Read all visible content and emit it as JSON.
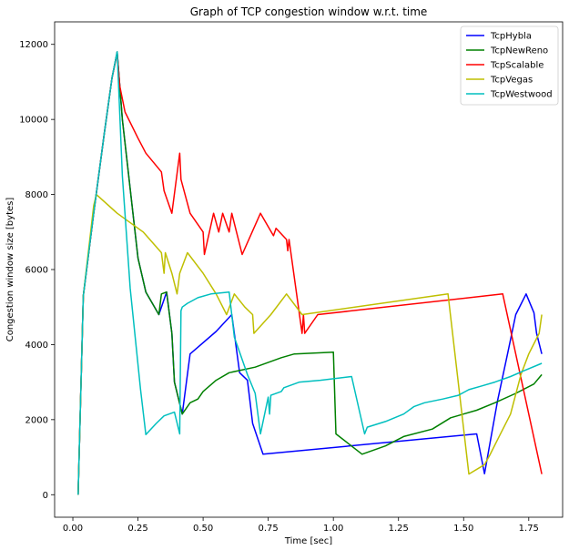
{
  "chart_data": {
    "type": "line",
    "title": "Graph of TCP congestion window w.r.t. time",
    "xlabel": "Time [sec]",
    "ylabel": "Congestion window size [bytes]",
    "xlim": [
      -0.07,
      1.88
    ],
    "ylim": [
      -600,
      12600
    ],
    "xticks": [
      0.0,
      0.25,
      0.5,
      0.75,
      1.0,
      1.25,
      1.5,
      1.75
    ],
    "xtick_labels": [
      "0.00",
      "0.25",
      "0.50",
      "0.75",
      "1.00",
      "1.25",
      "1.50",
      "1.75"
    ],
    "yticks": [
      0,
      2000,
      4000,
      6000,
      8000,
      10000,
      12000
    ],
    "ytick_labels": [
      "0",
      "2000",
      "4000",
      "6000",
      "8000",
      "10000",
      "12000"
    ],
    "grid": false,
    "legend_position": "top-right",
    "series": [
      {
        "name": "TcpHybla",
        "color": "#0000ff",
        "points": [
          [
            0.02,
            0
          ],
          [
            0.04,
            5300
          ],
          [
            0.08,
            7500
          ],
          [
            0.12,
            9600
          ],
          [
            0.15,
            11100
          ],
          [
            0.17,
            11800
          ],
          [
            0.19,
            10000
          ],
          [
            0.25,
            6300
          ],
          [
            0.28,
            5400
          ],
          [
            0.33,
            4800
          ],
          [
            0.36,
            5400
          ],
          [
            0.38,
            4300
          ],
          [
            0.39,
            3000
          ],
          [
            0.42,
            2150
          ],
          [
            0.45,
            3750
          ],
          [
            0.55,
            4350
          ],
          [
            0.61,
            4800
          ],
          [
            0.64,
            3250
          ],
          [
            0.67,
            3050
          ],
          [
            0.69,
            1900
          ],
          [
            0.73,
            1080
          ],
          [
            1.55,
            1620
          ],
          [
            1.58,
            560
          ],
          [
            1.63,
            2500
          ],
          [
            1.67,
            3800
          ],
          [
            1.7,
            4800
          ],
          [
            1.74,
            5350
          ],
          [
            1.77,
            4850
          ],
          [
            1.78,
            4300
          ],
          [
            1.8,
            3750
          ]
        ]
      },
      {
        "name": "TcpNewReno",
        "color": "#008000",
        "points": [
          [
            0.02,
            0
          ],
          [
            0.04,
            5300
          ],
          [
            0.08,
            7500
          ],
          [
            0.12,
            9600
          ],
          [
            0.15,
            11100
          ],
          [
            0.17,
            11800
          ],
          [
            0.19,
            10000
          ],
          [
            0.25,
            6300
          ],
          [
            0.28,
            5400
          ],
          [
            0.33,
            4800
          ],
          [
            0.34,
            5350
          ],
          [
            0.36,
            5400
          ],
          [
            0.38,
            4300
          ],
          [
            0.39,
            3000
          ],
          [
            0.42,
            2150
          ],
          [
            0.45,
            2450
          ],
          [
            0.48,
            2550
          ],
          [
            0.5,
            2750
          ],
          [
            0.55,
            3050
          ],
          [
            0.6,
            3250
          ],
          [
            0.7,
            3400
          ],
          [
            0.8,
            3650
          ],
          [
            0.85,
            3750
          ],
          [
            1.0,
            3800
          ],
          [
            1.01,
            1620
          ],
          [
            1.11,
            1080
          ],
          [
            1.2,
            1300
          ],
          [
            1.27,
            1550
          ],
          [
            1.38,
            1750
          ],
          [
            1.45,
            2050
          ],
          [
            1.55,
            2250
          ],
          [
            1.62,
            2450
          ],
          [
            1.7,
            2700
          ],
          [
            1.77,
            2950
          ],
          [
            1.8,
            3200
          ]
        ]
      },
      {
        "name": "TcpScalable",
        "color": "#ff0000",
        "points": [
          [
            0.02,
            0
          ],
          [
            0.04,
            5300
          ],
          [
            0.08,
            7500
          ],
          [
            0.12,
            9600
          ],
          [
            0.15,
            11100
          ],
          [
            0.17,
            11750
          ],
          [
            0.18,
            10900
          ],
          [
            0.2,
            10200
          ],
          [
            0.25,
            9500
          ],
          [
            0.28,
            9100
          ],
          [
            0.34,
            8600
          ],
          [
            0.35,
            8100
          ],
          [
            0.38,
            7500
          ],
          [
            0.41,
            9100
          ],
          [
            0.415,
            8400
          ],
          [
            0.45,
            7500
          ],
          [
            0.5,
            7000
          ],
          [
            0.505,
            6400
          ],
          [
            0.54,
            7500
          ],
          [
            0.56,
            7000
          ],
          [
            0.575,
            7500
          ],
          [
            0.6,
            7000
          ],
          [
            0.61,
            7500
          ],
          [
            0.65,
            6400
          ],
          [
            0.72,
            7500
          ],
          [
            0.77,
            6900
          ],
          [
            0.78,
            7100
          ],
          [
            0.82,
            6800
          ],
          [
            0.825,
            6500
          ],
          [
            0.83,
            6800
          ],
          [
            0.88,
            4300
          ],
          [
            0.885,
            4800
          ],
          [
            0.89,
            4300
          ],
          [
            0.94,
            4800
          ],
          [
            1.65,
            5350
          ],
          [
            1.8,
            550
          ]
        ]
      },
      {
        "name": "TcpVegas",
        "color": "#bfbf00",
        "points": [
          [
            0.02,
            0
          ],
          [
            0.04,
            5300
          ],
          [
            0.08,
            7700
          ],
          [
            0.09,
            8000
          ],
          [
            0.17,
            7500
          ],
          [
            0.27,
            7000
          ],
          [
            0.34,
            6450
          ],
          [
            0.35,
            5900
          ],
          [
            0.355,
            6450
          ],
          [
            0.38,
            5900
          ],
          [
            0.4,
            5350
          ],
          [
            0.41,
            5900
          ],
          [
            0.44,
            6450
          ],
          [
            0.5,
            5900
          ],
          [
            0.55,
            5350
          ],
          [
            0.59,
            4800
          ],
          [
            0.62,
            5350
          ],
          [
            0.66,
            5000
          ],
          [
            0.69,
            4800
          ],
          [
            0.695,
            4300
          ],
          [
            0.76,
            4800
          ],
          [
            0.82,
            5350
          ],
          [
            0.88,
            4800
          ],
          [
            1.44,
            5350
          ],
          [
            1.52,
            550
          ],
          [
            1.58,
            800
          ],
          [
            1.6,
            1050
          ],
          [
            1.64,
            1600
          ],
          [
            1.68,
            2150
          ],
          [
            1.72,
            3200
          ],
          [
            1.75,
            3750
          ],
          [
            1.79,
            4300
          ],
          [
            1.8,
            4800
          ]
        ]
      },
      {
        "name": "TcpWestwood",
        "color": "#00bfbf",
        "points": [
          [
            0.02,
            0
          ],
          [
            0.04,
            5300
          ],
          [
            0.08,
            7500
          ],
          [
            0.12,
            9600
          ],
          [
            0.15,
            11100
          ],
          [
            0.17,
            11800
          ],
          [
            0.19,
            8500
          ],
          [
            0.22,
            5500
          ],
          [
            0.26,
            2800
          ],
          [
            0.28,
            1600
          ],
          [
            0.32,
            1900
          ],
          [
            0.35,
            2100
          ],
          [
            0.39,
            2200
          ],
          [
            0.41,
            1620
          ],
          [
            0.415,
            4900
          ],
          [
            0.42,
            5000
          ],
          [
            0.44,
            5100
          ],
          [
            0.48,
            5250
          ],
          [
            0.53,
            5350
          ],
          [
            0.6,
            5400
          ],
          [
            0.62,
            4200
          ],
          [
            0.67,
            3200
          ],
          [
            0.7,
            2700
          ],
          [
            0.72,
            1620
          ],
          [
            0.75,
            2600
          ],
          [
            0.755,
            2150
          ],
          [
            0.76,
            2650
          ],
          [
            0.8,
            2750
          ],
          [
            0.81,
            2850
          ],
          [
            0.87,
            3000
          ],
          [
            0.95,
            3050
          ],
          [
            1.07,
            3150
          ],
          [
            1.12,
            1620
          ],
          [
            1.13,
            1800
          ],
          [
            1.2,
            1950
          ],
          [
            1.27,
            2150
          ],
          [
            1.31,
            2350
          ],
          [
            1.35,
            2450
          ],
          [
            1.42,
            2550
          ],
          [
            1.48,
            2650
          ],
          [
            1.52,
            2800
          ],
          [
            1.57,
            2900
          ],
          [
            1.62,
            3000
          ],
          [
            1.68,
            3150
          ],
          [
            1.73,
            3300
          ],
          [
            1.8,
            3500
          ]
        ]
      }
    ]
  }
}
